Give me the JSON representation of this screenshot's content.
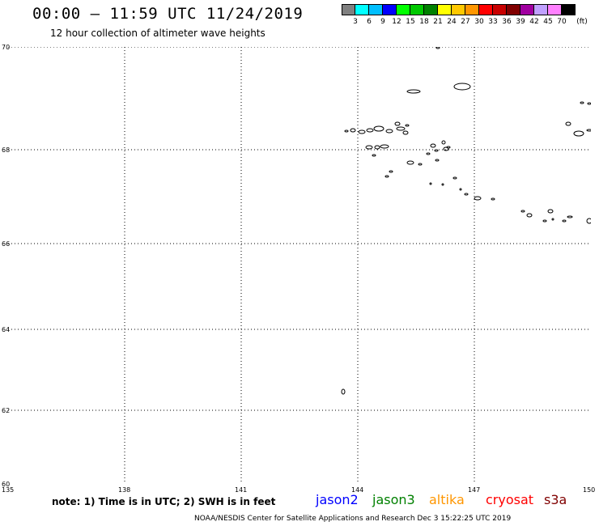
{
  "header": {
    "title": "00:00 – 11:59 UTC 11/24/2019",
    "subtitle": "12 hour collection of altimeter wave heights"
  },
  "scale": {
    "colors": [
      "#808080",
      "#00ffff",
      "#00bfff",
      "#0000ff",
      "#00ff00",
      "#00c800",
      "#008000",
      "#ffff00",
      "#ffc800",
      "#ff9600",
      "#ff0000",
      "#c80000",
      "#800000",
      "#a000a0",
      "#c0a0ff",
      "#ff80ff",
      "#000000"
    ],
    "labels": [
      "3",
      "6",
      "9",
      "12",
      "15",
      "18",
      "21",
      "24",
      "27",
      "30",
      "33",
      "36",
      "39",
      "42",
      "45",
      "70",
      "(ft)"
    ]
  },
  "map": {
    "lat_labels": [
      "70",
      "68",
      "66",
      "64",
      "62",
      "60"
    ],
    "lon_labels": [
      "135",
      "138",
      "141",
      "144",
      "147",
      "150"
    ]
  },
  "note": "note: 1) Time is in UTC; 2) SWH is in feet",
  "satellites": [
    {
      "name": "jason2",
      "color": "#0000ff"
    },
    {
      "name": "jason3",
      "color": "#008000"
    },
    {
      "name": "altika",
      "color": "#ff9600"
    },
    {
      "name": "cryosat",
      "color": "#ff0000"
    },
    {
      "name": "s3a",
      "color": "#800000"
    }
  ],
  "footer": "NOAA/NESDIS Center for Satellite Applications and Research    Dec  3 15:22:25 UTC 2019"
}
